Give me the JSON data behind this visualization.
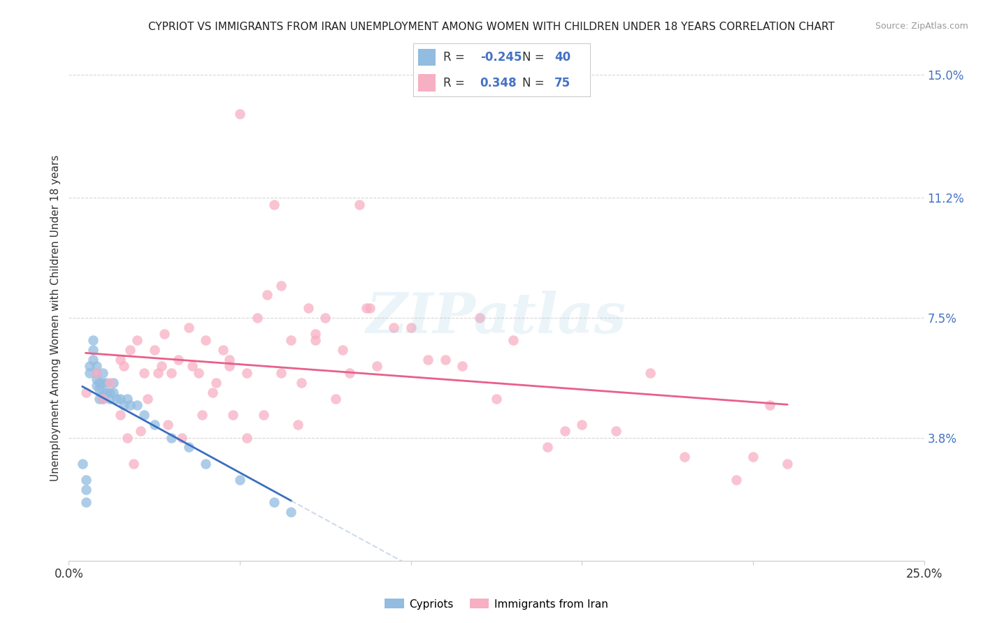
{
  "title": "CYPRIOT VS IMMIGRANTS FROM IRAN UNEMPLOYMENT AMONG WOMEN WITH CHILDREN UNDER 18 YEARS CORRELATION CHART",
  "source": "Source: ZipAtlas.com",
  "ylabel": "Unemployment Among Women with Children Under 18 years",
  "legend_R1": "-0.245",
  "legend_N1": "40",
  "legend_R2": "0.348",
  "legend_N2": "75",
  "color_cypriot": "#92bce0",
  "color_iran": "#f7afc4",
  "line_color_cypriot": "#3a6fbf",
  "line_color_iran": "#e8608a",
  "line_color_cypriot_dash": "#a0b8d8",
  "watermark_text": "ZIPatlas",
  "xlim": [
    0.0,
    0.25
  ],
  "ylim": [
    0.0,
    0.15
  ],
  "ytick_vals": [
    0.0,
    0.038,
    0.075,
    0.112,
    0.15
  ],
  "ytick_labels": [
    "",
    "3.8%",
    "7.5%",
    "11.2%",
    "15.0%"
  ],
  "xtick_vals": [
    0.0,
    0.05,
    0.1,
    0.15,
    0.2,
    0.25
  ],
  "xtick_labels": [
    "0.0%",
    "",
    "",
    "",
    "",
    "25.0%"
  ],
  "cypriot_x": [
    0.004,
    0.005,
    0.005,
    0.005,
    0.006,
    0.006,
    0.007,
    0.007,
    0.007,
    0.008,
    0.008,
    0.008,
    0.008,
    0.009,
    0.009,
    0.009,
    0.01,
    0.01,
    0.01,
    0.01,
    0.011,
    0.011,
    0.012,
    0.012,
    0.013,
    0.013,
    0.014,
    0.015,
    0.016,
    0.017,
    0.018,
    0.02,
    0.022,
    0.025,
    0.03,
    0.035,
    0.04,
    0.05,
    0.06,
    0.065
  ],
  "cypriot_y": [
    0.03,
    0.025,
    0.022,
    0.018,
    0.06,
    0.058,
    0.068,
    0.065,
    0.062,
    0.06,
    0.058,
    0.056,
    0.054,
    0.055,
    0.053,
    0.05,
    0.058,
    0.055,
    0.052,
    0.05,
    0.055,
    0.052,
    0.052,
    0.05,
    0.055,
    0.052,
    0.05,
    0.05,
    0.048,
    0.05,
    0.048,
    0.048,
    0.045,
    0.042,
    0.038,
    0.035,
    0.03,
    0.025,
    0.018,
    0.015
  ],
  "iran_x": [
    0.005,
    0.008,
    0.01,
    0.012,
    0.015,
    0.016,
    0.017,
    0.018,
    0.02,
    0.022,
    0.023,
    0.025,
    0.027,
    0.028,
    0.03,
    0.032,
    0.035,
    0.036,
    0.038,
    0.04,
    0.042,
    0.045,
    0.047,
    0.048,
    0.05,
    0.052,
    0.055,
    0.058,
    0.06,
    0.062,
    0.065,
    0.068,
    0.07,
    0.072,
    0.075,
    0.078,
    0.08,
    0.085,
    0.088,
    0.09,
    0.095,
    0.1,
    0.105,
    0.11,
    0.115,
    0.12,
    0.125,
    0.13,
    0.14,
    0.145,
    0.15,
    0.16,
    0.17,
    0.18,
    0.195,
    0.2,
    0.205,
    0.21,
    0.015,
    0.019,
    0.021,
    0.026,
    0.029,
    0.033,
    0.039,
    0.043,
    0.047,
    0.052,
    0.057,
    0.062,
    0.067,
    0.072,
    0.082,
    0.087
  ],
  "iran_y": [
    0.052,
    0.058,
    0.05,
    0.055,
    0.062,
    0.06,
    0.038,
    0.065,
    0.068,
    0.058,
    0.05,
    0.065,
    0.06,
    0.07,
    0.058,
    0.062,
    0.072,
    0.06,
    0.058,
    0.068,
    0.052,
    0.065,
    0.06,
    0.045,
    0.138,
    0.058,
    0.075,
    0.082,
    0.11,
    0.085,
    0.068,
    0.055,
    0.078,
    0.07,
    0.075,
    0.05,
    0.065,
    0.11,
    0.078,
    0.06,
    0.072,
    0.072,
    0.062,
    0.062,
    0.06,
    0.075,
    0.05,
    0.068,
    0.035,
    0.04,
    0.042,
    0.04,
    0.058,
    0.032,
    0.025,
    0.032,
    0.048,
    0.03,
    0.045,
    0.03,
    0.04,
    0.058,
    0.042,
    0.038,
    0.045,
    0.055,
    0.062,
    0.038,
    0.045,
    0.058,
    0.042,
    0.068,
    0.058,
    0.078
  ]
}
